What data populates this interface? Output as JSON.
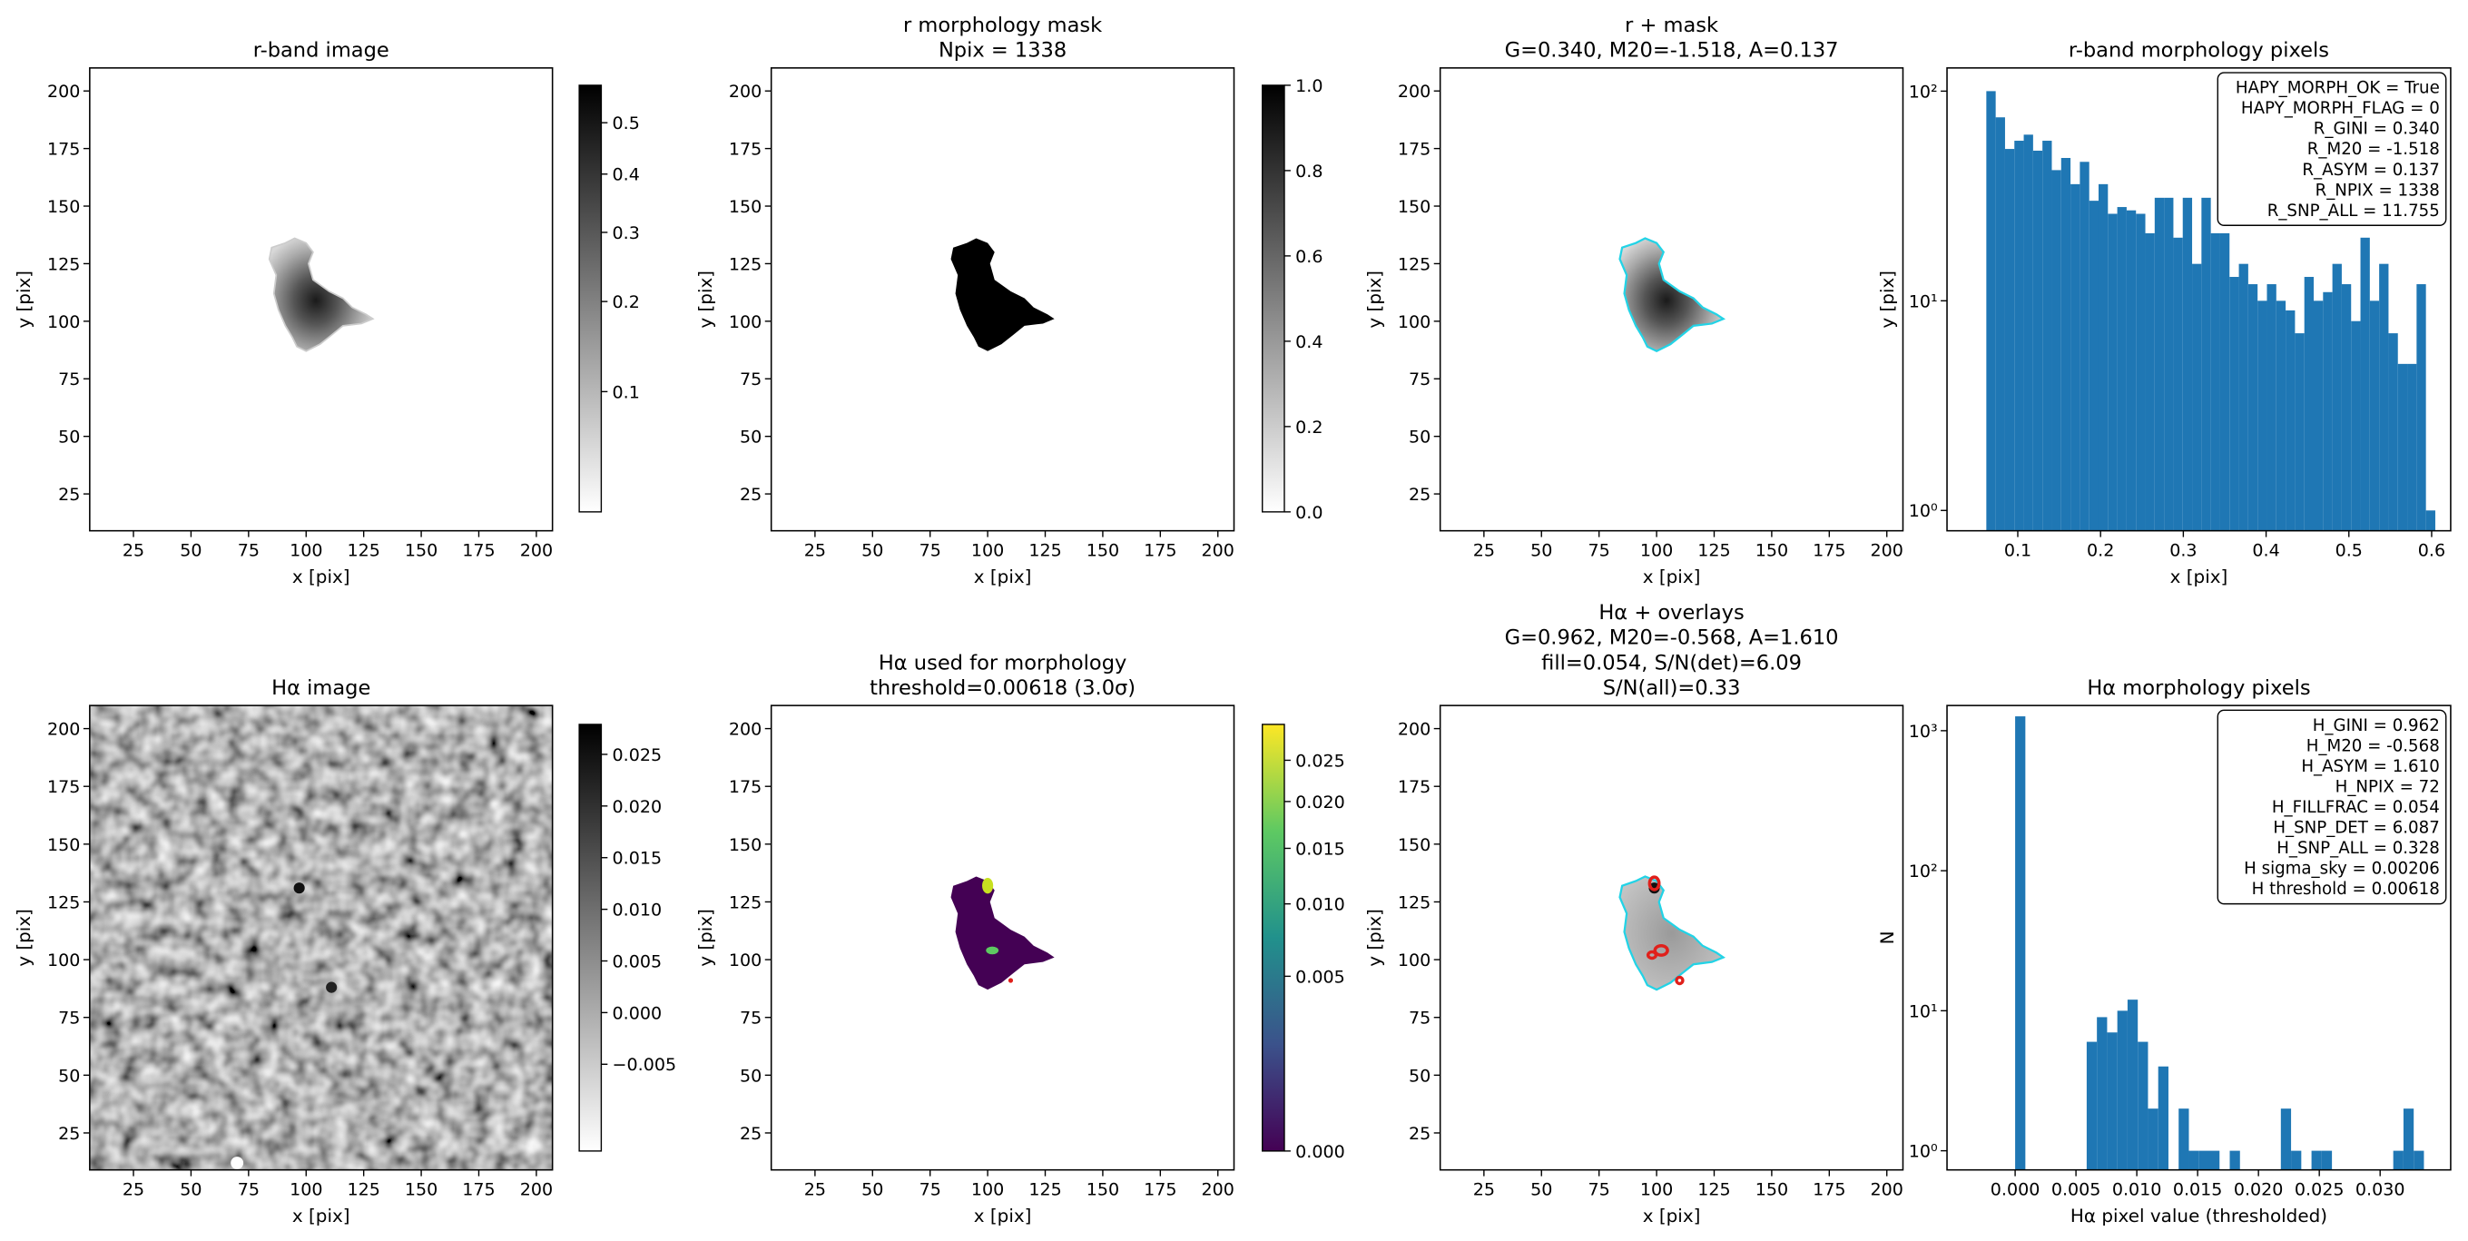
{
  "chart_data": [
    {
      "type": "image",
      "title": [
        "r-band image"
      ],
      "xlabel": "x [pix]",
      "ylabel": "y [pix]",
      "xlim": [
        6,
        207
      ],
      "ylim": [
        9,
        210
      ],
      "xticks": [
        25,
        50,
        75,
        100,
        125,
        150,
        175,
        200
      ],
      "yticks": [
        25,
        50,
        75,
        100,
        125,
        150,
        175,
        200
      ],
      "colorbar": {
        "cmap": "gray_r",
        "scale": "sqrt",
        "clim": [
          0.02,
          0.58
        ],
        "ticks": [
          0.1,
          0.2,
          0.3,
          0.4,
          0.5
        ]
      }
    },
    {
      "type": "image",
      "title": [
        "r morphology mask",
        "Npix = 1338"
      ],
      "xlabel": "x [pix]",
      "ylabel": "y [pix]",
      "xlim": [
        6,
        207
      ],
      "ylim": [
        9,
        210
      ],
      "xticks": [
        25,
        50,
        75,
        100,
        125,
        150,
        175,
        200
      ],
      "yticks": [
        25,
        50,
        75,
        100,
        125,
        150,
        175,
        200
      ],
      "colorbar": {
        "cmap": "gray_r",
        "scale": "linear",
        "clim": [
          0,
          1
        ],
        "ticks": [
          {
            "value": 0,
            "label": "0.0"
          },
          0.2,
          0.4,
          0.6,
          0.8,
          {
            "value": 1,
            "label": "1.0"
          }
        ]
      }
    },
    {
      "type": "image",
      "title": [
        "r + mask",
        "G=0.340, M20=-1.518, A=0.137"
      ],
      "xlabel": "x [pix]",
      "ylabel": "y [pix]",
      "xlim": [
        6,
        207
      ],
      "ylim": [
        9,
        210
      ],
      "xticks": [
        25,
        50,
        75,
        100,
        125,
        150,
        175,
        200
      ],
      "yticks": [
        25,
        50,
        75,
        100,
        125,
        150,
        175,
        200
      ],
      "contour_color": "#22d3e6"
    },
    {
      "type": "histogram",
      "title": [
        "r-band morphology pixels"
      ],
      "xlabel": "x [pix]",
      "ylabel": "y [pix]",
      "color": "#1f77b4",
      "log_y": true,
      "xlim": [
        0.0145,
        0.623
      ],
      "ylim": [
        0.8,
        129
      ],
      "xticks": [
        0.1,
        0.2,
        0.3,
        0.4,
        0.5,
        0.6
      ],
      "yticks": [
        {
          "value": 1,
          "label": "10⁰"
        },
        {
          "value": 10,
          "label": "10¹"
        },
        {
          "value": 100,
          "label": "10²"
        }
      ],
      "bins": [
        0.062,
        0.0733,
        0.0846,
        0.0959,
        0.1072,
        0.1185,
        0.1298,
        0.1411,
        0.1524,
        0.1637,
        0.175,
        0.1863,
        0.1976,
        0.2089,
        0.2202,
        0.2315,
        0.2428,
        0.2541,
        0.2654,
        0.2767,
        0.288,
        0.2993,
        0.3106,
        0.3219,
        0.3332,
        0.3445,
        0.3558,
        0.3671,
        0.3784,
        0.3897,
        0.401,
        0.4123,
        0.4236,
        0.4349,
        0.4462,
        0.4575,
        0.4688,
        0.4801,
        0.4914,
        0.5027,
        0.514,
        0.5253,
        0.5366,
        0.5479,
        0.5592,
        0.5705,
        0.5818,
        0.5931,
        0.6044
      ],
      "values": [
        100,
        75,
        53,
        58,
        62,
        52,
        58,
        42,
        48,
        36,
        46,
        30,
        36,
        26,
        28,
        27,
        26,
        21,
        31,
        31,
        20,
        31,
        15,
        31,
        21,
        21,
        13,
        15,
        12,
        10,
        12,
        10,
        9,
        7,
        13,
        10,
        11,
        15,
        12,
        8,
        20,
        10,
        15,
        7,
        5,
        5,
        12,
        1
      ],
      "annotation": [
        "HAPY_MORPH_OK = True",
        "HAPY_MORPH_FLAG = 0",
        "R_GINI = 0.340",
        "R_M20 = -1.518",
        "R_ASYM = 0.137",
        "R_NPIX = 1338",
        "R_SNP_ALL = 11.755"
      ]
    },
    {
      "type": "image",
      "title": [
        "Hα image"
      ],
      "xlabel": "x [pix]",
      "ylabel": "y [pix]",
      "xlim": [
        6,
        207
      ],
      "ylim": [
        9,
        210
      ],
      "xticks": [
        25,
        50,
        75,
        100,
        125,
        150,
        175,
        200
      ],
      "yticks": [
        25,
        50,
        75,
        100,
        125,
        150,
        175,
        200
      ],
      "colorbar": {
        "cmap": "gray_r",
        "scale": "linear",
        "clim": [
          -0.0134,
          0.0279
        ],
        "ticks": [
          {
            "value": -0.005,
            "label": "−0.005"
          },
          {
            "value": 0,
            "label": "0.000"
          },
          {
            "value": 0.005,
            "label": "0.005"
          },
          {
            "value": 0.01,
            "label": "0.010"
          },
          {
            "value": 0.015,
            "label": "0.015"
          },
          {
            "value": 0.02,
            "label": "0.020"
          },
          {
            "value": 0.025,
            "label": "0.025"
          }
        ]
      }
    },
    {
      "type": "image",
      "title": [
        "Hα used for morphology",
        "threshold=0.00618 (3.0σ)"
      ],
      "xlabel": "x [pix]",
      "ylabel": "y [pix]",
      "xlim": [
        6,
        207
      ],
      "ylim": [
        9,
        210
      ],
      "xticks": [
        25,
        50,
        75,
        100,
        125,
        150,
        175,
        200
      ],
      "yticks": [
        25,
        50,
        75,
        100,
        125,
        150,
        175,
        200
      ],
      "colorbar": {
        "cmap": "viridis",
        "scale": "sqrt",
        "clim": [
          0,
          0.0298
        ],
        "ticks": [
          {
            "value": 0,
            "label": "0.000"
          },
          {
            "value": 0.005,
            "label": "0.005"
          },
          {
            "value": 0.01,
            "label": "0.010"
          },
          {
            "value": 0.015,
            "label": "0.015"
          },
          {
            "value": 0.02,
            "label": "0.020"
          },
          {
            "value": 0.025,
            "label": "0.025"
          }
        ]
      }
    },
    {
      "type": "image",
      "title": [
        "Hα + overlays",
        "G=0.962, M20=-0.568, A=1.610",
        "fill=0.054, S/N(det)=6.09",
        "S/N(all)=0.33"
      ],
      "xlabel": "x [pix]",
      "ylabel": "y [pix]",
      "xlim": [
        6,
        207
      ],
      "ylim": [
        9,
        210
      ],
      "xticks": [
        25,
        50,
        75,
        100,
        125,
        150,
        175,
        200
      ],
      "yticks": [
        25,
        50,
        75,
        100,
        125,
        150,
        175,
        200
      ],
      "contour_color": "#22d3e6",
      "spot_color": "#e0201b"
    },
    {
      "type": "histogram",
      "title": [
        "Hα morphology pixels"
      ],
      "xlabel": "Hα pixel value (thresholded)",
      "ylabel": "N",
      "color": "#1f77b4",
      "log_y": true,
      "xlim": [
        -0.0056,
        0.0358
      ],
      "ylim": [
        0.73,
        1513
      ],
      "xticks": [
        {
          "value": 0,
          "label": "0.000"
        },
        {
          "value": 0.005,
          "label": "0.005"
        },
        {
          "value": 0.01,
          "label": "0.010"
        },
        {
          "value": 0.015,
          "label": "0.015"
        },
        {
          "value": 0.02,
          "label": "0.020"
        },
        {
          "value": 0.025,
          "label": "0.025"
        },
        {
          "value": 0.03,
          "label": "0.030"
        }
      ],
      "yticks": [
        {
          "value": 1,
          "label": "10⁰"
        },
        {
          "value": 10,
          "label": "10¹"
        },
        {
          "value": 100,
          "label": "10²"
        },
        {
          "value": 1000,
          "label": "10³"
        }
      ],
      "bins": [
        0,
        0.00084,
        0.00168,
        0.00252,
        0.00336,
        0.0042,
        0.00504,
        0.00588,
        0.00672,
        0.00756,
        0.0084,
        0.00924,
        0.01008,
        0.01092,
        0.01176,
        0.0126,
        0.01344,
        0.01428,
        0.01512,
        0.01596,
        0.0168,
        0.01764,
        0.01848,
        0.01932,
        0.02016,
        0.021,
        0.02184,
        0.02268,
        0.02352,
        0.02436,
        0.0252,
        0.02604,
        0.02688,
        0.02772,
        0.02856,
        0.0294,
        0.03024,
        0.03108,
        0.03192,
        0.03276,
        0.0336
      ],
      "values": [
        1266,
        0,
        0,
        0,
        0,
        0,
        0,
        6,
        9,
        7,
        10,
        12,
        6,
        2,
        4,
        0,
        2,
        1,
        1,
        1,
        0,
        1,
        0,
        0,
        0,
        0,
        2,
        1,
        0,
        1,
        1,
        0,
        0,
        0,
        0,
        0,
        0,
        1,
        2,
        1
      ],
      "annotation": [
        "H_GINI = 0.962",
        "H_M20 = -0.568",
        "H_ASYM = 1.610",
        "H_NPIX = 72",
        "H_FILLFRAC = 0.054",
        "H_SNP_DET = 6.087",
        "H_SNP_ALL = 0.328",
        "H sigma_sky = 0.00206",
        "H threshold = 0.00618"
      ]
    }
  ]
}
